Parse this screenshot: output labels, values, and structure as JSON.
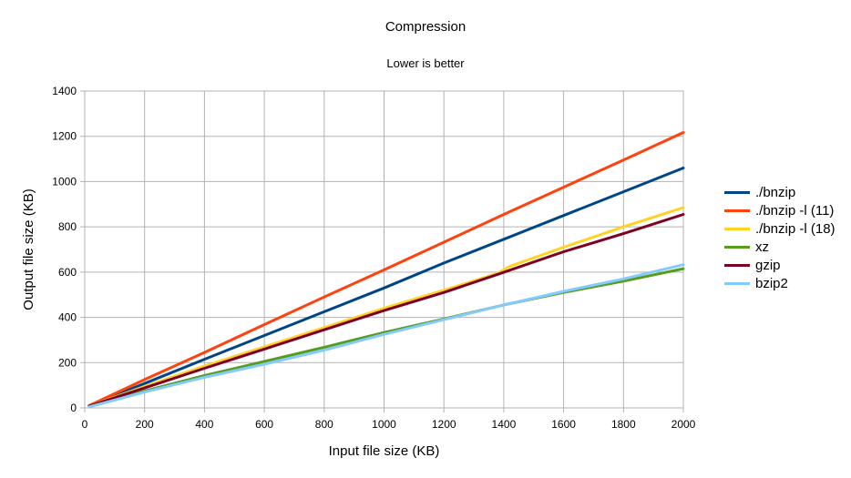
{
  "chart_data": {
    "type": "line",
    "title": "Compression",
    "subtitle": "Lower is better",
    "xlabel": "Input file size (KB)",
    "ylabel": "Output file size (KB)",
    "xlim": [
      0,
      2000
    ],
    "ylim": [
      0,
      1400
    ],
    "xticks": [
      0,
      200,
      400,
      600,
      800,
      1000,
      1200,
      1400,
      1600,
      1800,
      2000
    ],
    "yticks": [
      0,
      200,
      400,
      600,
      800,
      1000,
      1200,
      1400
    ],
    "grid": true,
    "legend_position": "right",
    "series": [
      {
        "name": "./bnzip",
        "color": "#004586",
        "x": [
          15,
          200,
          400,
          600,
          800,
          1000,
          1200,
          1400,
          1600,
          1800,
          2000
        ],
        "y": [
          10,
          108,
          215,
          320,
          425,
          530,
          640,
          745,
          850,
          955,
          1060
        ]
      },
      {
        "name": "./bnzip -l (11)",
        "color": "#ff420e",
        "x": [
          15,
          200,
          400,
          600,
          800,
          1000,
          1200,
          1400,
          1600,
          1800,
          2000
        ],
        "y": [
          10,
          125,
          245,
          368,
          490,
          610,
          732,
          855,
          975,
          1095,
          1217
        ]
      },
      {
        "name": "./bnzip -l (18)",
        "color": "#ffd320",
        "x": [
          15,
          200,
          400,
          600,
          800,
          1000,
          1200,
          1380,
          1420,
          1600,
          1800,
          2000
        ],
        "y": [
          8,
          95,
          185,
          270,
          355,
          440,
          520,
          595,
          625,
          710,
          800,
          885
        ]
      },
      {
        "name": "xz",
        "color": "#579d1c",
        "x": [
          15,
          200,
          400,
          600,
          800,
          1000,
          1200,
          1400,
          1600,
          1800,
          2000
        ],
        "y": [
          8,
          75,
          143,
          205,
          268,
          333,
          393,
          455,
          510,
          560,
          615
        ]
      },
      {
        "name": "gzip",
        "color": "#7e0021",
        "x": [
          15,
          200,
          400,
          600,
          800,
          1000,
          1200,
          1380,
          1600,
          1800,
          2000
        ],
        "y": [
          8,
          88,
          175,
          260,
          345,
          430,
          510,
          590,
          690,
          770,
          855
        ]
      },
      {
        "name": "bzip2",
        "color": "#83caff",
        "x": [
          15,
          200,
          400,
          600,
          800,
          1000,
          1200,
          1400,
          1600,
          1800,
          2000
        ],
        "y": [
          5,
          70,
          135,
          193,
          255,
          325,
          390,
          455,
          515,
          570,
          633
        ]
      }
    ]
  }
}
